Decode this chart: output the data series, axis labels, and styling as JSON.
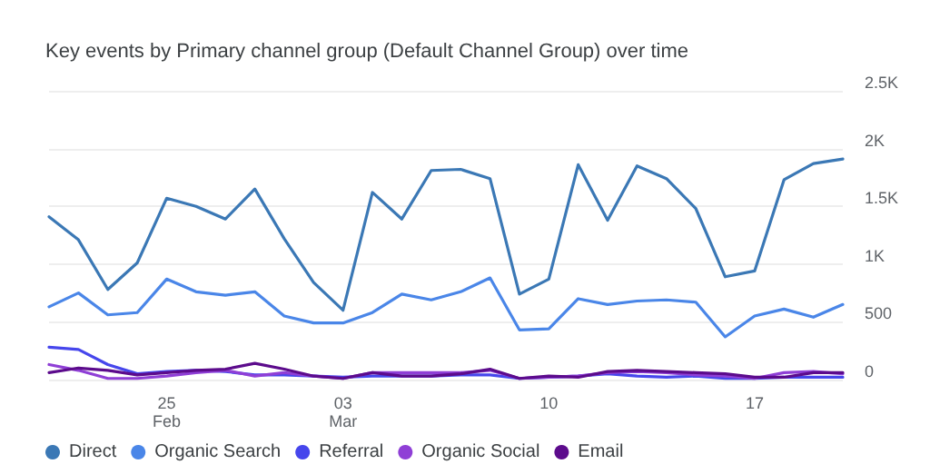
{
  "chart_data": {
    "type": "line",
    "title": "Key events by Primary channel group (Default Channel Group) over time",
    "x": [
      "--02-21",
      "--02-22",
      "--02-23",
      "--02-24",
      "--02-25",
      "--02-26",
      "--02-27",
      "--02-28",
      "--03-01",
      "--03-02",
      "--03-03",
      "--03-04",
      "--03-05",
      "--03-06",
      "--03-07",
      "--03-08",
      "--03-09",
      "--03-10",
      "--03-11",
      "--03-12",
      "--03-13",
      "--03-14",
      "--03-15",
      "--03-16",
      "--03-17",
      "--03-18",
      "--03-19",
      "--03-20"
    ],
    "series": [
      {
        "name": "Direct",
        "color": "#3b78b5",
        "values": [
          1410,
          1210,
          780,
          1010,
          1570,
          1500,
          1390,
          1650,
          1220,
          840,
          600,
          1620,
          1390,
          1810,
          1820,
          1740,
          740,
          870,
          1860,
          1380,
          1850,
          1740,
          1480,
          890,
          940,
          1730,
          1870,
          1910
        ]
      },
      {
        "name": "Organic Search",
        "color": "#4a86e8",
        "values": [
          630,
          750,
          560,
          580,
          870,
          760,
          730,
          760,
          550,
          490,
          490,
          580,
          740,
          690,
          760,
          880,
          430,
          440,
          700,
          650,
          680,
          690,
          670,
          370,
          550,
          610,
          540,
          650
        ]
      },
      {
        "name": "Referral",
        "color": "#4646ec",
        "values": [
          280,
          260,
          130,
          50,
          70,
          80,
          70,
          40,
          40,
          30,
          20,
          30,
          30,
          30,
          40,
          40,
          10,
          20,
          30,
          50,
          30,
          20,
          30,
          10,
          10,
          20,
          20,
          20
        ]
      },
      {
        "name": "Organic Social",
        "color": "#8f3fd6",
        "values": [
          130,
          80,
          10,
          10,
          30,
          60,
          80,
          30,
          60,
          30,
          10,
          60,
          60,
          60,
          60,
          80,
          10,
          20,
          30,
          60,
          70,
          60,
          40,
          30,
          10,
          60,
          70,
          50
        ]
      },
      {
        "name": "Email",
        "color": "#5c0b8c",
        "values": [
          60,
          100,
          80,
          40,
          60,
          80,
          90,
          140,
          90,
          30,
          10,
          60,
          30,
          30,
          50,
          90,
          10,
          30,
          20,
          70,
          80,
          70,
          60,
          50,
          20,
          20,
          60,
          60
        ]
      }
    ],
    "ylim": [
      0,
      2500
    ],
    "yticks": [
      0,
      500,
      {
        "value": 1000,
        "label": "1K"
      },
      {
        "value": 1500,
        "label": "1.5K"
      },
      {
        "value": 2000,
        "label": "2K"
      },
      {
        "value": 2500,
        "label": "2.5K"
      }
    ],
    "xlim": [
      "--02-21",
      "--03-20"
    ],
    "xticks": [
      {
        "value": "--02-25",
        "label": "25\nFeb"
      },
      {
        "value": "--03-03",
        "label": "03\nMar"
      },
      {
        "value": "--03-10",
        "label": "10"
      },
      {
        "value": "--03-17",
        "label": "17"
      }
    ],
    "grid": "y",
    "legend": "bottom left",
    "marker": "none",
    "line_style": "solid"
  }
}
